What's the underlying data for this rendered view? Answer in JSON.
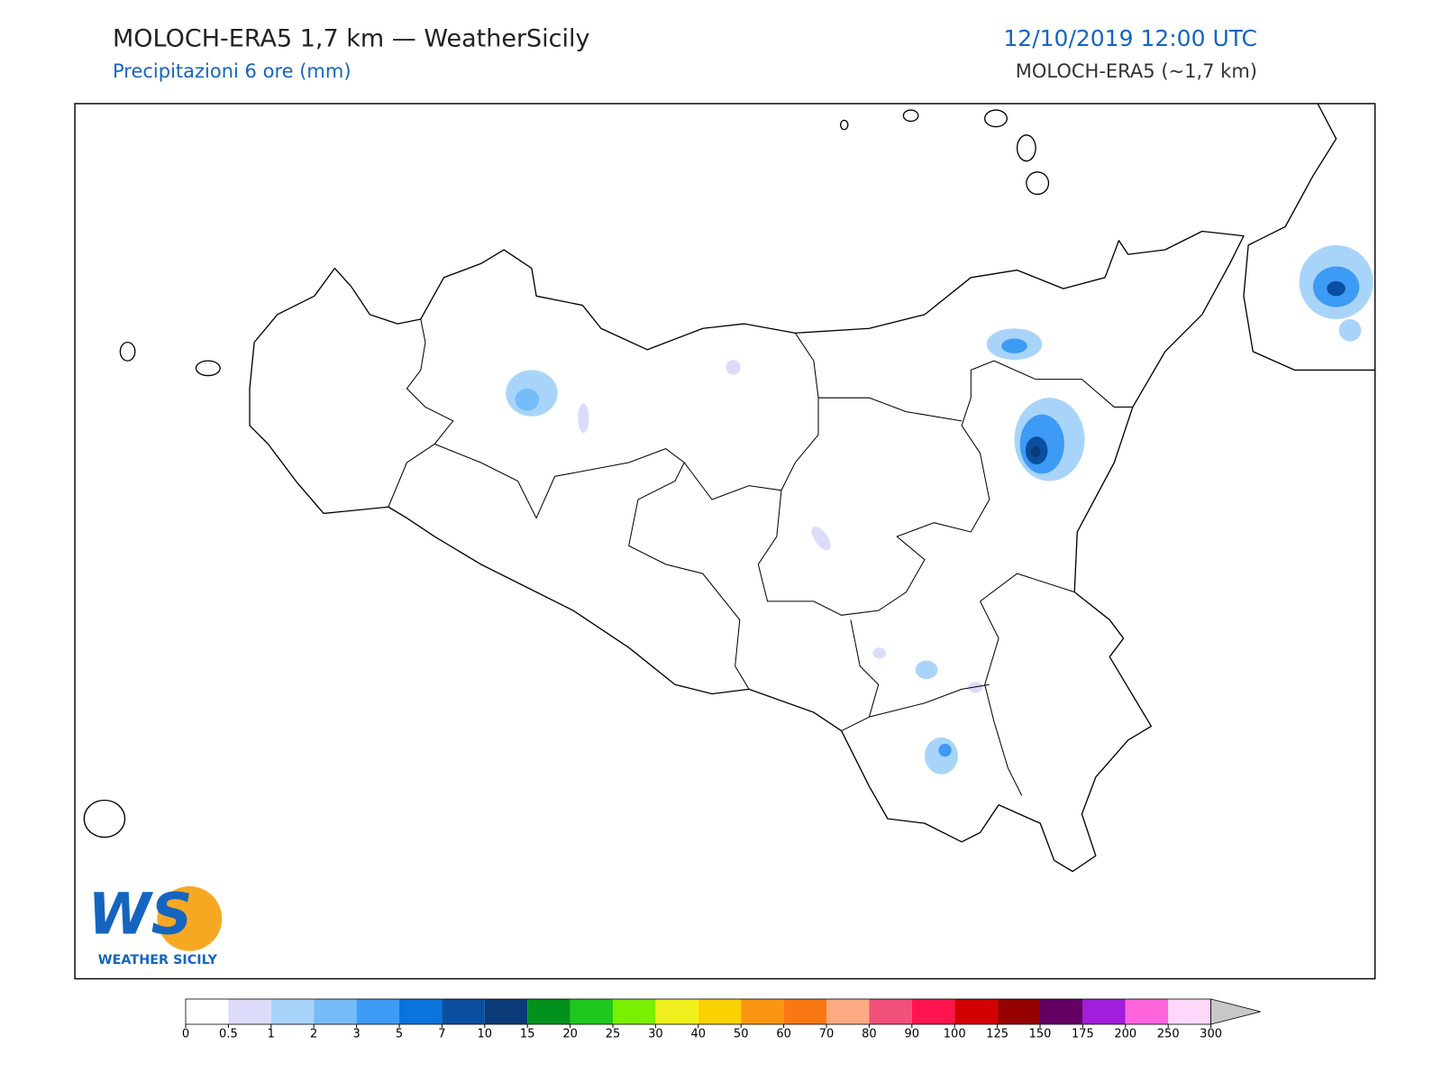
{
  "header": {
    "title": "MOLOCH-ERA5 1,7 km — WeatherSicily",
    "subtitle": "Precipitazioni 6 ore (mm)",
    "datetime": "12/10/2019 12:00 UTC",
    "model": "MOLOCH-ERA5 (~1,7 km)"
  },
  "logo": {
    "letters": "WS",
    "name": "WEATHER SICILY"
  },
  "colorbar": {
    "ticks": [
      0,
      0.5,
      1,
      2,
      3,
      5,
      7,
      10,
      15,
      20,
      25,
      30,
      40,
      50,
      60,
      70,
      80,
      90,
      100,
      125,
      150,
      175,
      200,
      250,
      300
    ],
    "colors": [
      "#ffffff",
      "#dcdcfa",
      "#a9d4fa",
      "#76bcf8",
      "#3d9bf5",
      "#0a74dc",
      "#0a4fa0",
      "#0a3a78",
      "#00901c",
      "#1ec81e",
      "#78f000",
      "#f0f01e",
      "#fad200",
      "#fa9614",
      "#fa7814",
      "#fdaa82",
      "#f0507a",
      "#ff1450",
      "#d20000",
      "#960000",
      "#640064",
      "#a01edc",
      "#ff64dc",
      "#ffd7fa"
    ],
    "over_color": "#c8c8c8"
  }
}
